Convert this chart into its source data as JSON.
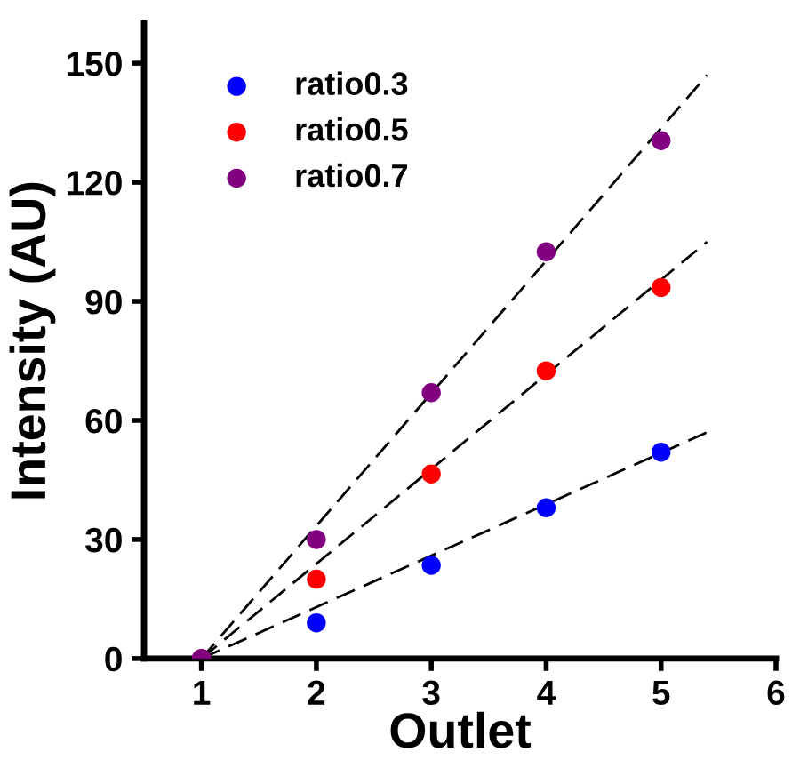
{
  "chart_data": {
    "type": "scatter",
    "xlabel": "Outlet",
    "ylabel": "Intensity (AU)",
    "xlim": [
      0.5,
      6
    ],
    "xticks": [
      1,
      2,
      3,
      4,
      5,
      6
    ],
    "ylim": [
      0,
      160
    ],
    "yticks": [
      0,
      30,
      60,
      90,
      120,
      150
    ],
    "grid": false,
    "legend": "top left",
    "series": [
      {
        "name": "ratio0.3",
        "marker": "circle",
        "color": "#0000ff",
        "x": [
          1,
          2,
          3,
          4,
          5
        ],
        "values": [
          0,
          9,
          23.5,
          38,
          52
        ]
      },
      {
        "name": "ratio0.5",
        "marker": "circle",
        "color": "#ff0000",
        "x": [
          1,
          2,
          3,
          4,
          5
        ],
        "values": [
          0,
          20,
          46.5,
          72.5,
          93.5
        ]
      },
      {
        "name": "ratio0.7",
        "marker": "circle",
        "color": "#800080",
        "x": [
          1,
          2,
          3,
          4,
          5
        ],
        "values": [
          0,
          30,
          67,
          102.5,
          130.5
        ]
      },
      {
        "type": "line",
        "color": "#000000",
        "line_style": "dashed",
        "x": [
          1,
          5.4
        ],
        "values": [
          0,
          57
        ]
      },
      {
        "type": "line",
        "color": "#000000",
        "line_style": "dashed",
        "x": [
          1,
          5.4
        ],
        "values": [
          0,
          105
        ]
      },
      {
        "type": "line",
        "color": "#000000",
        "line_style": "dashed",
        "x": [
          1,
          5.4
        ],
        "values": [
          0,
          147
        ]
      }
    ]
  }
}
